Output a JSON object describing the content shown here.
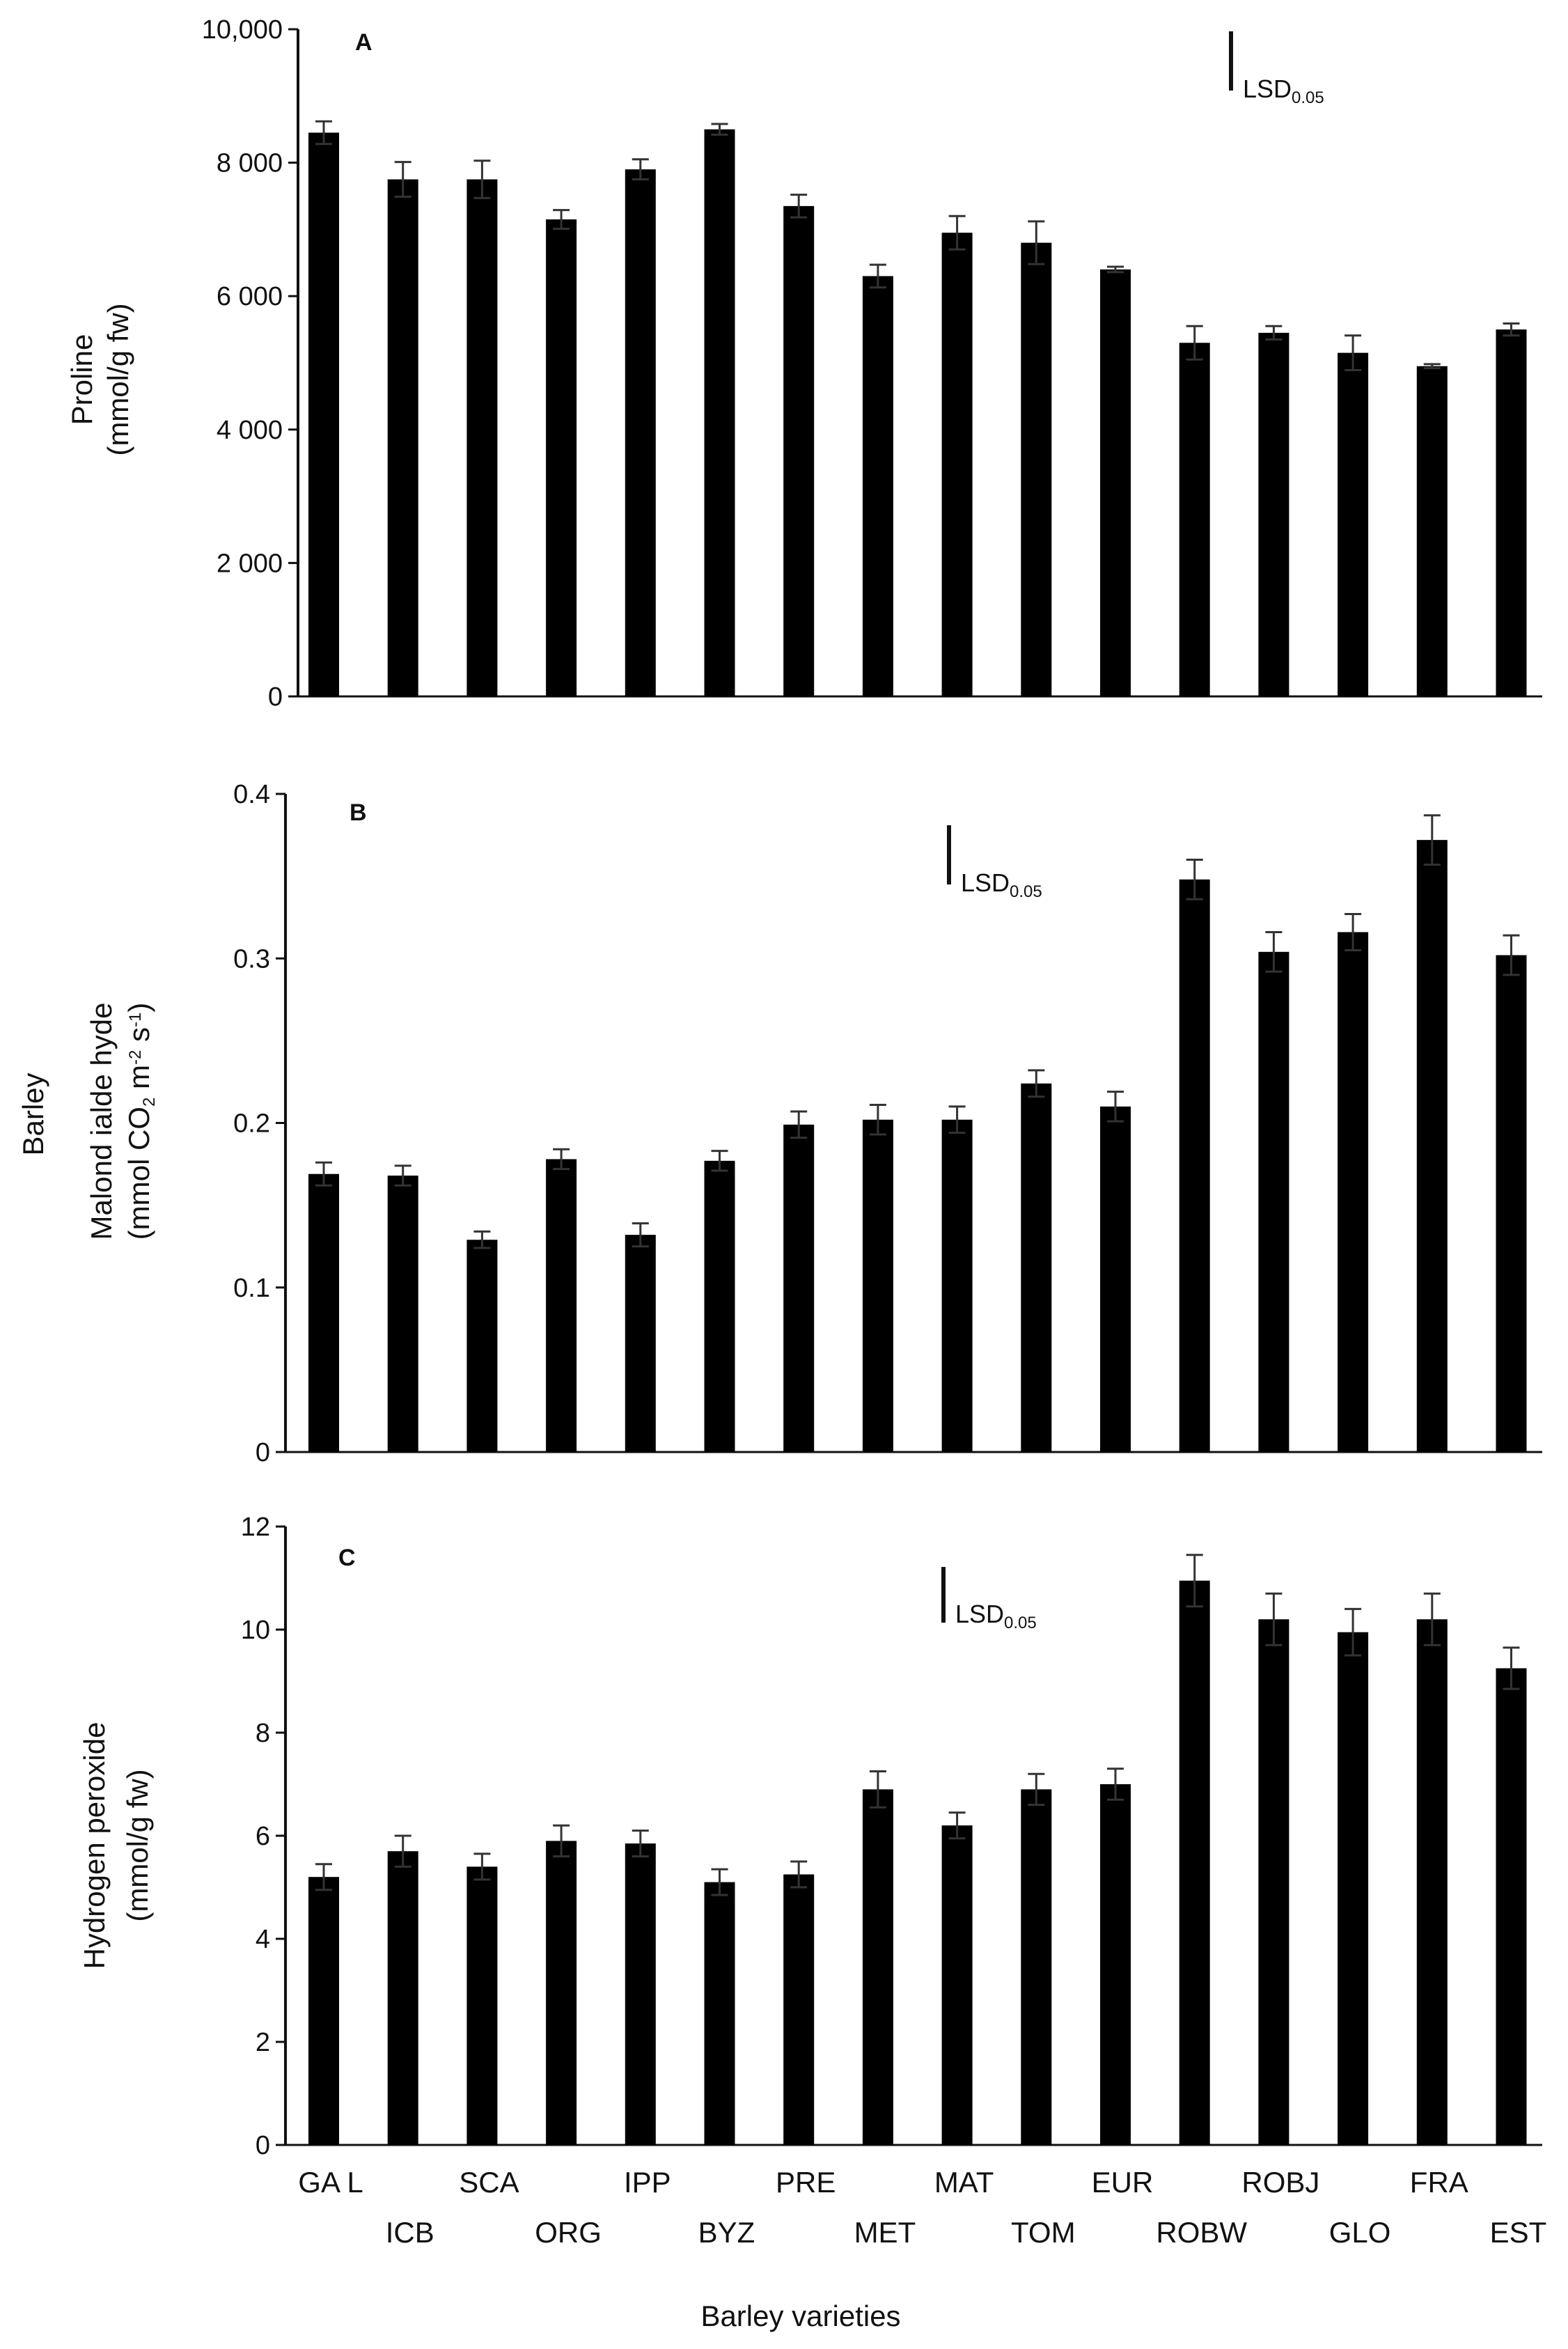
{
  "chart_data": [
    {
      "type": "bar",
      "panel": "A",
      "categories": [
        "GAL",
        "ICB",
        "SCA",
        "ORG",
        "IPP",
        "BYZ",
        "PRE",
        "MET",
        "MAT",
        "TOM",
        "EUR",
        "ROBW",
        "ROBJ",
        "GLO",
        "FRA",
        "EST"
      ],
      "values": [
        8450,
        7750,
        7750,
        7150,
        7900,
        8500,
        7350,
        6300,
        6950,
        6800,
        6400,
        5300,
        5450,
        5150,
        4950,
        5500
      ],
      "errors": [
        170,
        260,
        280,
        140,
        150,
        80,
        170,
        170,
        250,
        320,
        40,
        250,
        100,
        260,
        30,
        90
      ],
      "ylabel": "Proline",
      "ylabel_unit": "(mmol/g fw)",
      "ylim": [
        0,
        10000
      ],
      "yticks": [
        0,
        2000,
        4000,
        6000,
        8000,
        10000
      ],
      "ytick_labels": [
        "0",
        "2 000",
        "4 000",
        "6 000",
        "8 000",
        "10,000"
      ],
      "lsd_label": "LSD",
      "lsd_sub": "0.05"
    },
    {
      "type": "bar",
      "panel": "B",
      "categories": [
        "GAL",
        "ICB",
        "SCA",
        "ORG",
        "IPP",
        "BYZ",
        "PRE",
        "MET",
        "MAT",
        "TOM",
        "EUR",
        "ROBW",
        "ROBJ",
        "GLO",
        "FRA",
        "EST"
      ],
      "values": [
        0.169,
        0.168,
        0.129,
        0.178,
        0.132,
        0.177,
        0.199,
        0.202,
        0.202,
        0.224,
        0.21,
        0.348,
        0.304,
        0.316,
        0.372,
        0.302
      ],
      "errors": [
        0.007,
        0.006,
        0.005,
        0.006,
        0.007,
        0.006,
        0.008,
        0.009,
        0.008,
        0.008,
        0.009,
        0.012,
        0.012,
        0.011,
        0.015,
        0.012
      ],
      "ylabel": "Malond ialde hyde",
      "ylabel_unit_pre": "(mmol CO",
      "ylabel_unit_sub": "2",
      "ylabel_unit_mid": " m",
      "ylabel_unit_sup1": "-2",
      "ylabel_unit_mid2": " s",
      "ylabel_unit_sup2": "-1",
      "ylabel_unit_post": ")",
      "side_label": "Barley",
      "ylim": [
        0,
        0.4
      ],
      "yticks": [
        0,
        0.1,
        0.2,
        0.3,
        0.4
      ],
      "ytick_labels": [
        "0",
        "0.1",
        "0.2",
        "0.3",
        "0.4"
      ],
      "lsd_label": "LSD",
      "lsd_sub": "0.05"
    },
    {
      "type": "bar",
      "panel": "C",
      "categories": [
        "GAL",
        "ICB",
        "SCA",
        "ORG",
        "IPP",
        "BYZ",
        "PRE",
        "MET",
        "MAT",
        "TOM",
        "EUR",
        "ROBW",
        "ROBJ",
        "GLO",
        "FRA",
        "EST"
      ],
      "values": [
        5.2,
        5.7,
        5.4,
        5.9,
        5.85,
        5.1,
        5.25,
        6.9,
        6.2,
        6.9,
        7.0,
        10.95,
        10.2,
        9.95,
        10.2,
        9.25
      ],
      "errors": [
        0.25,
        0.3,
        0.25,
        0.3,
        0.25,
        0.25,
        0.25,
        0.35,
        0.25,
        0.3,
        0.3,
        0.5,
        0.5,
        0.45,
        0.5,
        0.4
      ],
      "ylabel": "Hydrogen peroxide",
      "ylabel_unit": "(mmol/g fw)",
      "xlabel": "Barley varieties",
      "ylim": [
        0,
        12
      ],
      "yticks": [
        0,
        2,
        4,
        6,
        8,
        10,
        12
      ],
      "ytick_labels": [
        "0",
        "2",
        "4",
        "6",
        "8",
        "10",
        "12"
      ],
      "lsd_label": "LSD",
      "lsd_sub": "0.05"
    }
  ],
  "panel_labels": [
    "A",
    "B",
    "C"
  ],
  "x_category_labels": [
    "GA L",
    "ICB",
    "SCA",
    "ORG",
    "IPP",
    "BYZ",
    "PRE",
    "MET",
    "MAT",
    "TOM",
    "EUR",
    "ROBW",
    "ROBJ",
    "GLO",
    "FRA",
    "EST"
  ],
  "colors": {
    "bar": "#000000",
    "axis": "#111111",
    "error": "#333333"
  }
}
